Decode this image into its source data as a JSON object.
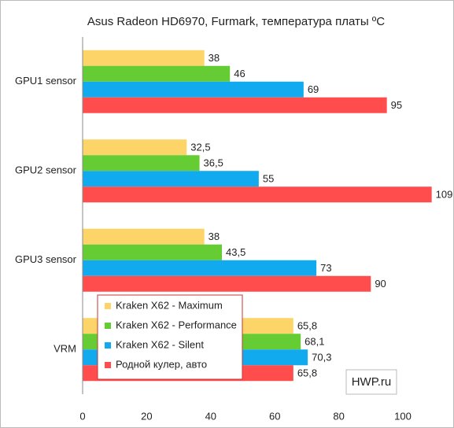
{
  "chart_data": {
    "type": "hbar",
    "title": "Asus Radeon HD6970, Furmark, температура платы ºС",
    "categories": [
      "GPU1 sensor",
      "GPU2 sensor",
      "GPU3 sensor",
      "VRM"
    ],
    "series": [
      {
        "name": "Kraken X62 - Maximum",
        "color": "#fdd467",
        "values": [
          38,
          32.5,
          38,
          65.8
        ],
        "value_labels": [
          "38",
          "32,5",
          "38",
          "65,8"
        ]
      },
      {
        "name": "Kraken X62 - Performance",
        "color": "#66cc33",
        "values": [
          46,
          36.5,
          43.5,
          68.1
        ],
        "value_labels": [
          "46",
          "36,5",
          "43,5",
          "68,1"
        ]
      },
      {
        "name": "Kraken X62 - Silent",
        "color": "#11aaee",
        "values": [
          69,
          55,
          73,
          70.3
        ],
        "value_labels": [
          "69",
          "55",
          "73",
          "70,3"
        ]
      },
      {
        "name": "Родной кулер, авто",
        "color": "#ff4d4d",
        "values": [
          95,
          109,
          90,
          65.8
        ],
        "value_labels": [
          "95",
          "109",
          "90",
          "65,8"
        ]
      }
    ],
    "xlim": [
      0,
      114
    ],
    "xticks": [
      0,
      20,
      40,
      60,
      80,
      100
    ],
    "grid": false,
    "watermark": "HWP.ru"
  }
}
